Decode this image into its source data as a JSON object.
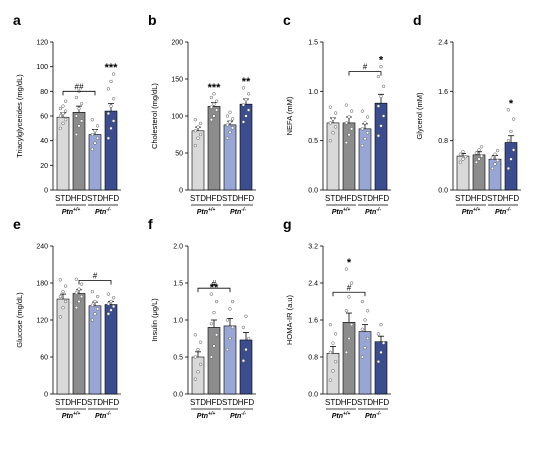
{
  "colors": {
    "std_wt": "#d9d9d9",
    "hfd_wt": "#8c8c8c",
    "std_ko": "#97a6d4",
    "hfd_ko": "#3c4d8f"
  },
  "chart_data": [
    {
      "id": "a",
      "type": "bar",
      "letter": "a",
      "ylabel": "Triacylglycerides (mg/dL)",
      "ylim": [
        0,
        120
      ],
      "ticks": [
        0,
        20,
        40,
        60,
        80,
        100,
        120
      ],
      "categories": [
        "STD",
        "HFD",
        "STD",
        "HFD"
      ],
      "groups": [
        {
          "label": "Ptn",
          "sup": "+/+"
        },
        {
          "label": "Ptn",
          "sup": "-/-"
        }
      ],
      "values": [
        59,
        63,
        45,
        64
      ],
      "errors": [
        3.5,
        5,
        4,
        6
      ],
      "points": [
        [
          50,
          54,
          57,
          60,
          62,
          64,
          66,
          68,
          72
        ],
        [
          45,
          52,
          56,
          60,
          66,
          70,
          75,
          80
        ],
        [
          33,
          38,
          42,
          45,
          48,
          52,
          57
        ],
        [
          42,
          50,
          56,
          62,
          68,
          74,
          82,
          88,
          94
        ]
      ],
      "significance": [
        "",
        "",
        "",
        "***"
      ],
      "brackets": [
        {
          "from": 0,
          "to": 2,
          "label": "##",
          "y": 80
        }
      ]
    },
    {
      "id": "b",
      "type": "bar",
      "letter": "b",
      "ylabel": "Cholesterol (mg/dL)",
      "ylim": [
        0,
        200
      ],
      "ticks": [
        0,
        50,
        100,
        150,
        200
      ],
      "categories": [
        "STD",
        "HFD",
        "STD",
        "HFD"
      ],
      "groups": [
        {
          "label": "Ptn",
          "sup": "+/+"
        },
        {
          "label": "Ptn",
          "sup": "-/-"
        }
      ],
      "values": [
        80,
        113,
        88,
        116
      ],
      "errors": [
        5,
        5,
        5,
        7
      ],
      "points": [
        [
          60,
          70,
          75,
          80,
          85,
          90,
          95
        ],
        [
          95,
          100,
          108,
          112,
          116,
          120,
          125,
          130
        ],
        [
          70,
          78,
          84,
          88,
          92,
          96,
          100,
          105
        ],
        [
          92,
          100,
          108,
          115,
          122,
          130,
          138
        ]
      ],
      "significance": [
        "",
        "***",
        "",
        "**"
      ],
      "brackets": []
    },
    {
      "id": "c",
      "type": "bar",
      "letter": "c",
      "ylabel": "NEFA (mM)",
      "ylim": [
        0,
        1.5
      ],
      "ticks": [
        0.0,
        0.5,
        1.0,
        1.5
      ],
      "categories": [
        "STD",
        "HFD",
        "STD",
        "HFD"
      ],
      "groups": [
        {
          "label": "Ptn",
          "sup": "+/+"
        },
        {
          "label": "Ptn",
          "sup": "-/-"
        }
      ],
      "values": [
        0.68,
        0.68,
        0.62,
        0.88
      ],
      "errors": [
        0.05,
        0.06,
        0.05,
        0.09
      ],
      "points": [
        [
          0.5,
          0.58,
          0.64,
          0.68,
          0.72,
          0.78,
          0.84
        ],
        [
          0.48,
          0.56,
          0.62,
          0.68,
          0.74,
          0.8,
          0.86
        ],
        [
          0.45,
          0.52,
          0.58,
          0.62,
          0.68,
          0.74,
          0.8
        ],
        [
          0.55,
          0.65,
          0.75,
          0.85,
          0.95,
          1.05,
          1.15,
          1.25
        ]
      ],
      "significance": [
        "",
        "",
        "",
        "*"
      ],
      "brackets": [
        {
          "from": 1,
          "to": 3,
          "label": "#",
          "y": 1.2
        }
      ]
    },
    {
      "id": "d",
      "type": "bar",
      "letter": "d",
      "ylabel": "Glycerol (mM)",
      "ylim": [
        0,
        2.4
      ],
      "ticks": [
        0.0,
        0.8,
        1.6,
        2.4
      ],
      "categories": [
        "STD",
        "HFD",
        "STD",
        "HFD"
      ],
      "groups": [
        {
          "label": "Ptn",
          "sup": "+/+"
        },
        {
          "label": "Ptn",
          "sup": "-/-"
        }
      ],
      "values": [
        0.55,
        0.57,
        0.5,
        0.77
      ],
      "errors": [
        0.04,
        0.05,
        0.06,
        0.11
      ],
      "points": [
        [
          0.45,
          0.5,
          0.54,
          0.58,
          0.62
        ],
        [
          0.45,
          0.5,
          0.55,
          0.6,
          0.65,
          0.7
        ],
        [
          0.35,
          0.42,
          0.48,
          0.52,
          0.58,
          0.64
        ],
        [
          0.35,
          0.5,
          0.65,
          0.8,
          0.95,
          1.15,
          1.3
        ]
      ],
      "significance": [
        "",
        "",
        "",
        "*"
      ],
      "brackets": []
    },
    {
      "id": "e",
      "type": "bar",
      "letter": "e",
      "ylabel": "Glucose (mg/dL)",
      "ylim": [
        0,
        240
      ],
      "ticks": [
        0,
        60,
        120,
        180,
        240
      ],
      "categories": [
        "STD",
        "HFD",
        "STD",
        "HFD"
      ],
      "groups": [
        {
          "label": "Ptn",
          "sup": "+/+"
        },
        {
          "label": "Ptn",
          "sup": "-/-"
        }
      ],
      "values": [
        154,
        163,
        143,
        145
      ],
      "errors": [
        8,
        6,
        6,
        5
      ],
      "points": [
        [
          125,
          140,
          150,
          158,
          166,
          175,
          185
        ],
        [
          140,
          150,
          158,
          164,
          170,
          178,
          186
        ],
        [
          120,
          130,
          138,
          144,
          150,
          158,
          166
        ],
        [
          130,
          136,
          142,
          146,
          150,
          156,
          162
        ]
      ],
      "significance": [
        "",
        "",
        "",
        ""
      ],
      "brackets": [
        {
          "from": 1,
          "to": 3,
          "label": "#",
          "y": 184
        }
      ]
    },
    {
      "id": "f",
      "type": "bar",
      "letter": "f",
      "ylabel": "Insulin (μg/L)",
      "ylim": [
        0,
        2.0
      ],
      "ticks": [
        0.0,
        0.5,
        1.0,
        1.5,
        2.0
      ],
      "categories": [
        "STD",
        "HFD",
        "STD",
        "HFD"
      ],
      "groups": [
        {
          "label": "Ptn",
          "sup": "+/+"
        },
        {
          "label": "Ptn",
          "sup": "-/-"
        }
      ],
      "values": [
        0.5,
        0.9,
        0.92,
        0.73
      ],
      "errors": [
        0.07,
        0.1,
        0.1,
        0.1
      ],
      "points": [
        [
          0.2,
          0.3,
          0.4,
          0.5,
          0.6,
          0.7,
          0.8
        ],
        [
          0.5,
          0.65,
          0.8,
          0.95,
          1.1,
          1.25,
          1.35
        ],
        [
          0.6,
          0.75,
          0.9,
          1.0,
          1.15,
          1.25
        ],
        [
          0.45,
          0.6,
          0.75,
          0.9,
          1.05
        ]
      ],
      "significance": [
        "",
        "**",
        "",
        ""
      ],
      "brackets": [
        {
          "from": 0,
          "to": 2,
          "label": "#",
          "y": 1.43
        }
      ]
    },
    {
      "id": "g",
      "type": "bar",
      "letter": "g",
      "ylabel": "HOMA-IR (a.u)",
      "ylim": [
        0,
        3.2
      ],
      "ticks": [
        0.0,
        0.8,
        1.6,
        2.4,
        3.2
      ],
      "categories": [
        "STD",
        "HFD",
        "STD",
        "HFD"
      ],
      "groups": [
        {
          "label": "Ptn",
          "sup": "+/+"
        },
        {
          "label": "Ptn",
          "sup": "-/-"
        }
      ],
      "values": [
        0.88,
        1.55,
        1.35,
        1.13
      ],
      "errors": [
        0.15,
        0.2,
        0.15,
        0.12
      ],
      "points": [
        [
          0.3,
          0.5,
          0.7,
          0.9,
          1.1,
          1.3,
          1.5
        ],
        [
          0.9,
          1.2,
          1.5,
          1.8,
          2.1,
          2.4,
          2.7
        ],
        [
          0.8,
          1.0,
          1.2,
          1.4,
          1.6,
          1.8,
          2.0
        ],
        [
          0.7,
          0.9,
          1.1,
          1.3,
          1.5
        ]
      ],
      "significance": [
        "",
        "*",
        "",
        ""
      ],
      "brackets": [
        {
          "from": 0,
          "to": 2,
          "label": "#",
          "y": 2.2
        }
      ]
    }
  ]
}
